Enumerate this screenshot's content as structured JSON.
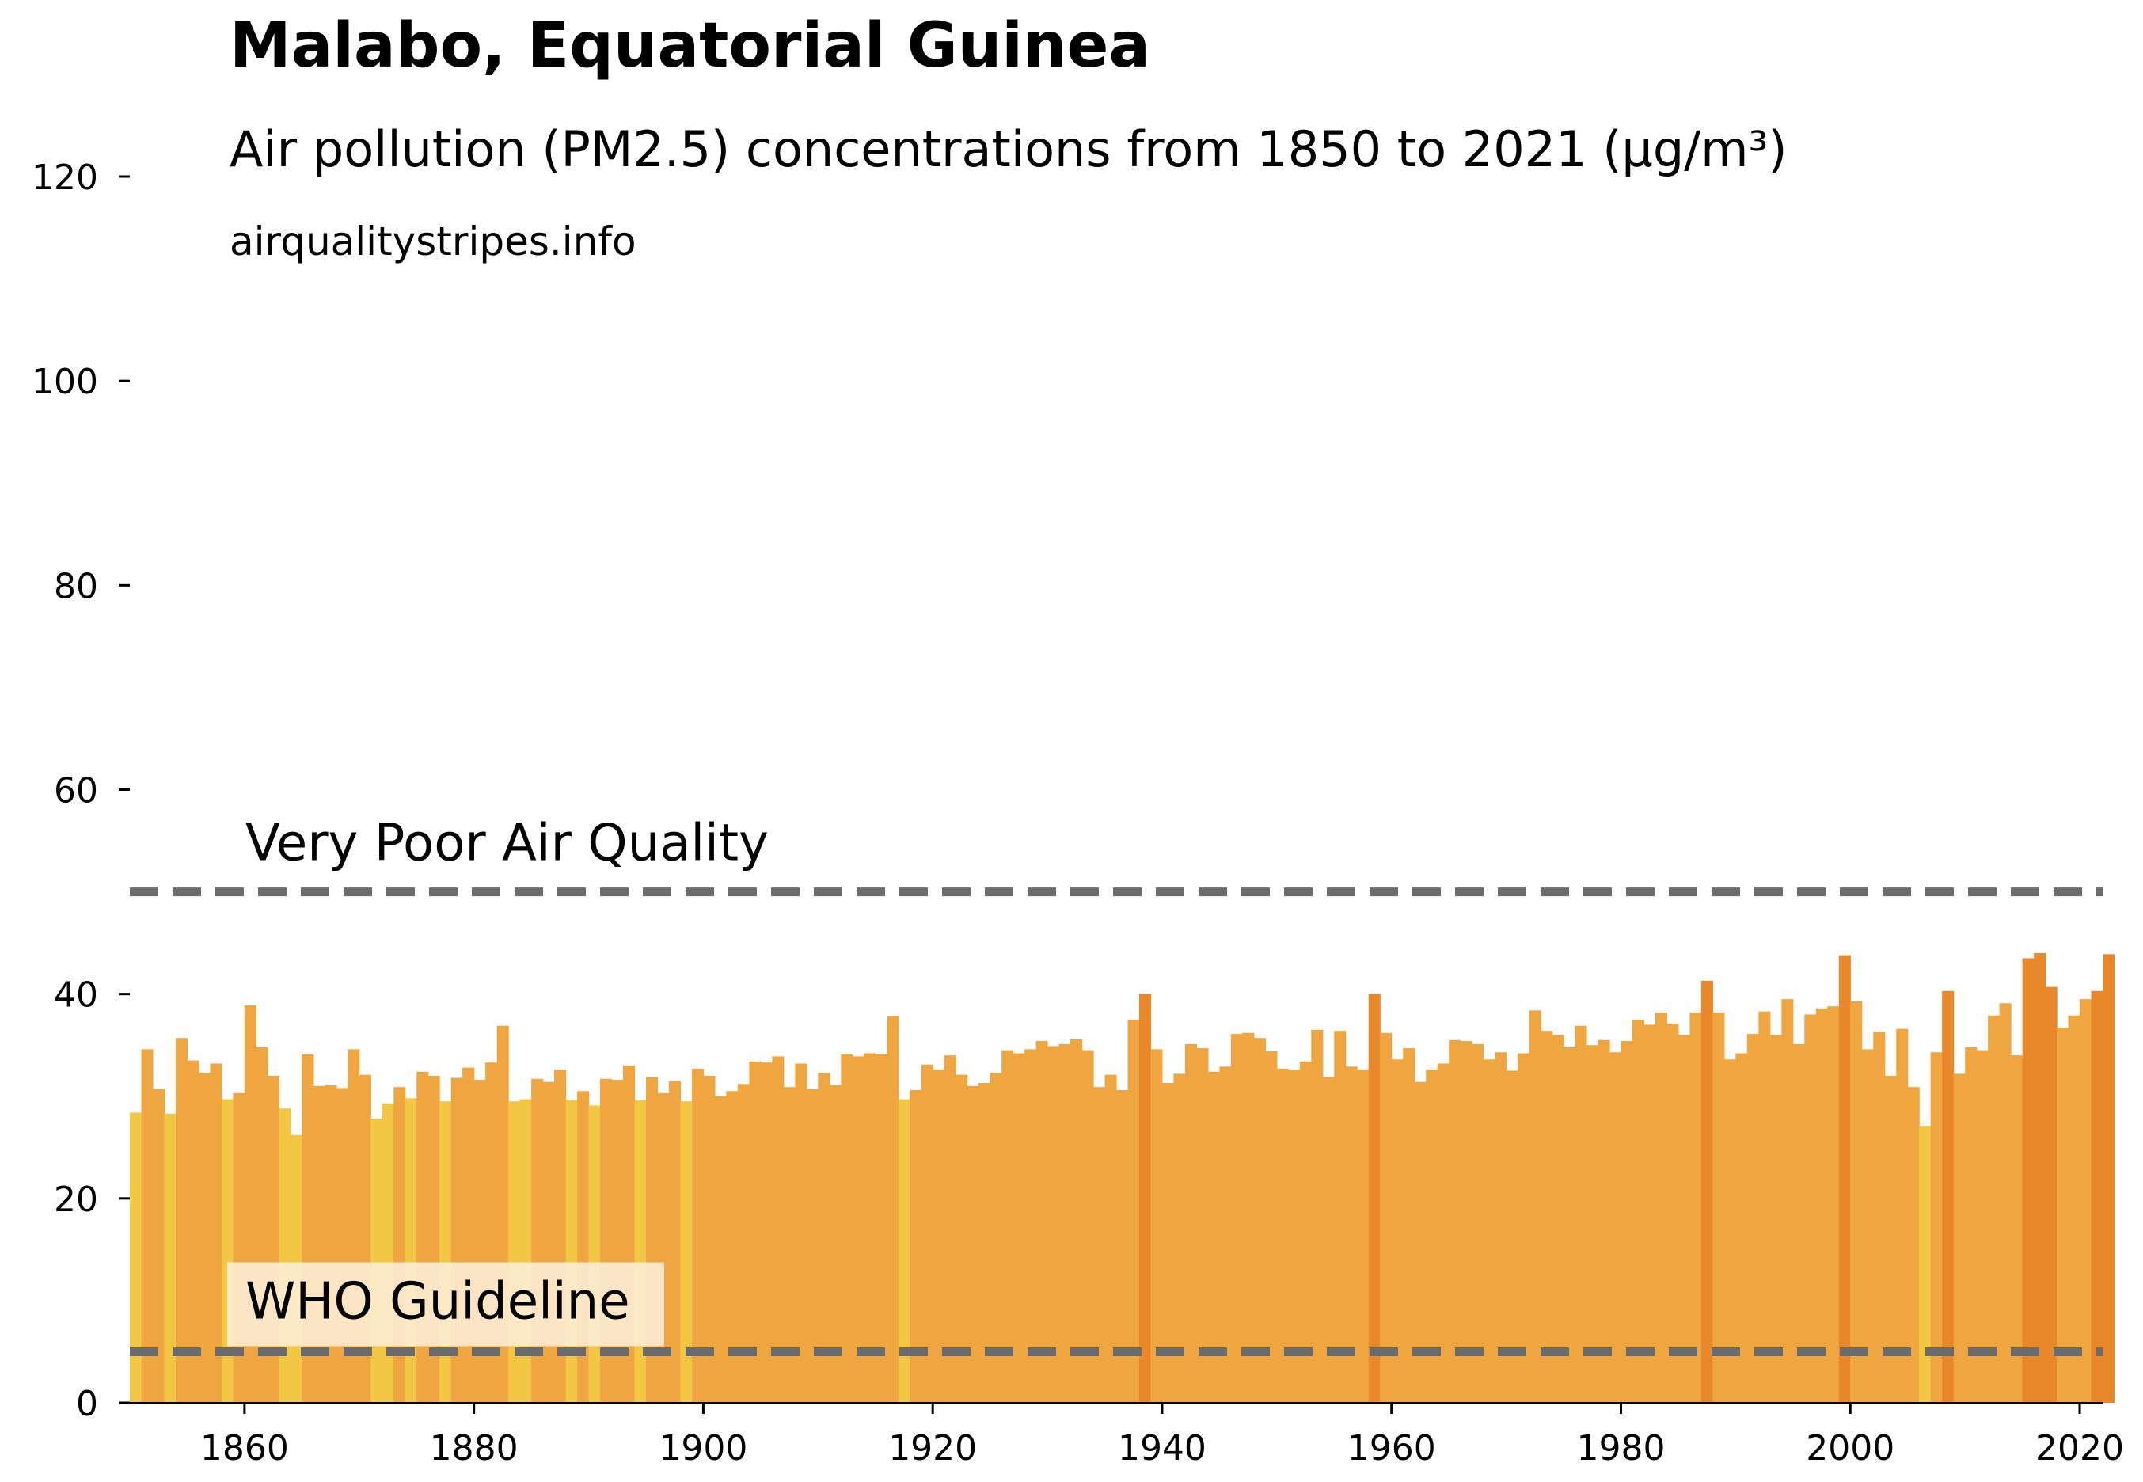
{
  "chart_data": {
    "type": "bar",
    "title": "Malabo, Equatorial Guinea",
    "subtitle": "Air pollution (PM2.5) concentrations from 1850 to 2021 (µg/m³)",
    "source": "airqualitystripes.info",
    "x_start_year": 1850,
    "xlim": [
      1850,
      2022
    ],
    "ylim": [
      0,
      120
    ],
    "xticks": [
      1860,
      1880,
      1900,
      1920,
      1940,
      1960,
      1980,
      2000,
      2020
    ],
    "yticks": [
      0,
      20,
      40,
      60,
      80,
      100,
      120
    ],
    "grid": false,
    "reference_lines": [
      {
        "label": "Very Poor Air Quality",
        "value": 50
      },
      {
        "label": "WHO Guideline",
        "value": 5
      }
    ],
    "colors": {
      "low": "#f2c744",
      "mid": "#f0a640",
      "high": "#e8882a",
      "reference_line": "#6b6b6b",
      "who_label_bg": "#fdf0dc"
    },
    "values": [
      28.4,
      34.6,
      30.7,
      28.3,
      35.7,
      33.5,
      32.3,
      33.2,
      29.7,
      30.3,
      38.9,
      34.8,
      32.0,
      28.8,
      26.2,
      34.1,
      31.0,
      31.1,
      30.8,
      34.6,
      32.1,
      27.8,
      29.3,
      30.9,
      29.8,
      32.4,
      32.0,
      29.5,
      31.8,
      32.8,
      31.6,
      33.3,
      36.9,
      29.5,
      29.7,
      31.7,
      31.4,
      32.6,
      29.6,
      30.5,
      29.1,
      31.7,
      31.6,
      33.0,
      29.6,
      31.9,
      30.3,
      31.5,
      29.5,
      32.7,
      32.0,
      30.0,
      30.5,
      31.2,
      33.4,
      33.3,
      33.9,
      30.9,
      33.2,
      30.7,
      32.3,
      31.1,
      34.1,
      33.9,
      34.2,
      34.1,
      37.8,
      29.7,
      30.6,
      33.1,
      32.6,
      34.0,
      32.1,
      31.0,
      31.3,
      32.3,
      34.5,
      34.2,
      34.6,
      35.4,
      34.9,
      35.1,
      35.6,
      34.5,
      30.9,
      32.1,
      30.6,
      37.5,
      40.0,
      34.6,
      31.3,
      32.2,
      35.1,
      34.7,
      32.4,
      32.9,
      36.1,
      36.2,
      35.7,
      34.4,
      32.7,
      32.6,
      33.4,
      36.5,
      31.9,
      36.4,
      32.9,
      32.6,
      40.0,
      36.2,
      33.6,
      34.7,
      31.4,
      32.6,
      33.2,
      35.5,
      35.4,
      35.1,
      33.6,
      34.3,
      32.5,
      34.2,
      38.4,
      36.4,
      36.0,
      34.8,
      36.9,
      35.0,
      35.5,
      34.3,
      35.4,
      37.5,
      37.0,
      38.2,
      37.1,
      36.0,
      38.2,
      41.3,
      38.2,
      33.6,
      34.2,
      36.1,
      38.3,
      36.0,
      39.5,
      35.1,
      38.0,
      38.6,
      38.8,
      43.8,
      39.3,
      34.6,
      36.3,
      32.0,
      36.6,
      30.9,
      27.1,
      34.3,
      40.3,
      32.2,
      34.8,
      34.5,
      37.9,
      39.1,
      34.0,
      43.5,
      44.0,
      40.7,
      36.7,
      37.9,
      39.5,
      40.3,
      43.9
    ]
  }
}
